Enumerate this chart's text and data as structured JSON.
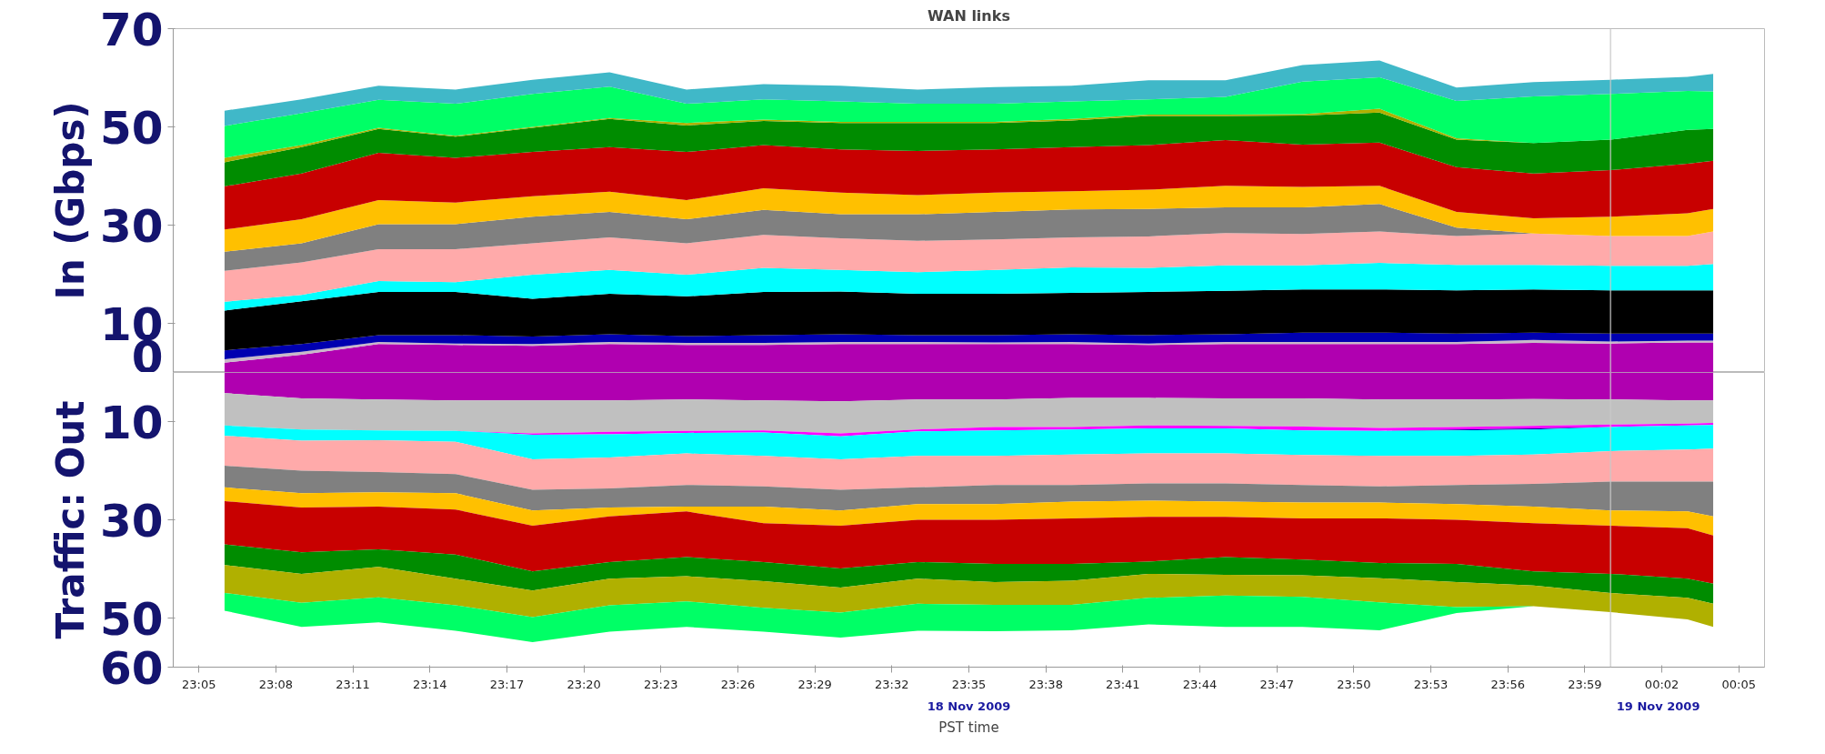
{
  "chart_data": [
    {
      "type": "area",
      "stacked": true,
      "title": "WAN links",
      "ylabel": "In (Gbps)",
      "tick_labels": "y",
      "grid": false,
      "x": [
        "2009-11-18T23:06",
        "2009-11-18T23:09",
        "2009-11-18T23:12",
        "2009-11-18T23:15",
        "2009-11-18T23:18",
        "2009-11-18T23:21",
        "2009-11-18T23:24",
        "2009-11-18T23:27",
        "2009-11-18T23:30",
        "2009-11-18T23:33",
        "2009-11-18T23:36",
        "2009-11-18T23:39",
        "2009-11-18T23:42",
        "2009-11-18T23:45",
        "2009-11-18T23:48",
        "2009-11-18T23:51",
        "2009-11-18T23:54",
        "2009-11-18T23:57",
        "2009-11-19T00:00",
        "2009-11-19T00:03",
        "2009-11-19T00:04"
      ],
      "xlim": [
        "2009-11-18T23:04",
        "2009-11-19T00:06"
      ],
      "ylim": [
        0,
        70
      ],
      "yticks": [
        70,
        50,
        30,
        10,
        0
      ],
      "ref_lines": [
        {
          "axis": "x",
          "value": "2009-11-19T00:00",
          "color": "#c8c8c8"
        }
      ],
      "series": [
        {
          "color": "#b000b0",
          "values": [
            2.0,
            3.6,
            5.8,
            5.6,
            5.4,
            5.8,
            5.6,
            5.6,
            5.8,
            5.8,
            5.8,
            5.8,
            5.6,
            5.8,
            5.8,
            5.8,
            5.8,
            6.0,
            5.9,
            6.1,
            6.1
          ]
        },
        {
          "color": "#c8b8c8",
          "values": [
            0.7,
            0.6,
            0.4,
            0.3,
            0.4,
            0.4,
            0.4,
            0.4,
            0.4,
            0.4,
            0.3,
            0.4,
            0.3,
            0.4,
            0.4,
            0.4,
            0.4,
            0.6,
            0.4,
            0.4,
            0.4
          ]
        },
        {
          "color": "#0000b0",
          "values": [
            1.8,
            1.6,
            1.4,
            1.7,
            1.5,
            1.6,
            1.4,
            1.6,
            1.6,
            1.4,
            1.5,
            1.6,
            1.7,
            1.6,
            1.9,
            1.9,
            1.7,
            1.5,
            1.6,
            1.4,
            1.4
          ]
        },
        {
          "color": "#000000",
          "values": [
            8.1,
            8.7,
            8.8,
            8.8,
            7.7,
            8.2,
            8.1,
            8.8,
            8.7,
            8.4,
            8.4,
            8.4,
            8.8,
            8.8,
            8.8,
            8.8,
            8.8,
            8.8,
            8.8,
            8.8,
            8.8
          ]
        },
        {
          "color": "#00ffff",
          "values": [
            1.8,
            1.3,
            2.2,
            2.0,
            4.9,
            4.9,
            4.4,
            4.9,
            4.4,
            4.4,
            4.9,
            5.2,
            4.9,
            5.2,
            4.9,
            5.4,
            5.2,
            5.0,
            5.0,
            5.0,
            5.4
          ]
        },
        {
          "color": "#ffaaaa",
          "values": [
            6.3,
            6.6,
            6.5,
            6.7,
            6.4,
            6.6,
            6.4,
            6.7,
            6.4,
            6.4,
            6.2,
            6.1,
            6.4,
            6.6,
            6.4,
            6.4,
            5.9,
            6.4,
            6.1,
            6.1,
            6.6
          ]
        },
        {
          "color": "#808080",
          "values": [
            3.9,
            3.9,
            5.1,
            5.1,
            5.4,
            5.2,
            4.9,
            5.1,
            4.9,
            5.4,
            5.6,
            5.7,
            5.6,
            5.2,
            5.4,
            5.6,
            1.7,
            0,
            0,
            0,
            0
          ]
        },
        {
          "color": "#ffc000",
          "values": [
            4.5,
            4.9,
            4.9,
            4.4,
            4.2,
            4.1,
            3.9,
            4.4,
            4.4,
            3.9,
            3.9,
            3.7,
            3.9,
            4.4,
            4.2,
            3.7,
            3.2,
            3.1,
            3.9,
            4.6,
            4.6
          ]
        },
        {
          "color": "#c80000",
          "values": [
            8.8,
            9.3,
            9.6,
            9.1,
            9.0,
            9.1,
            9.8,
            8.8,
            8.8,
            9.0,
            8.8,
            9.0,
            9.1,
            9.3,
            8.6,
            8.8,
            9.1,
            9.1,
            9.5,
            10.1,
            9.8
          ]
        },
        {
          "color": "#008c00",
          "values": [
            4.9,
            5.4,
            4.9,
            4.3,
            4.9,
            5.7,
            5.4,
            4.9,
            5.4,
            5.7,
            5.4,
            5.4,
            5.9,
            4.9,
            5.9,
            6.1,
            5.6,
            6.2,
            6.2,
            6.9,
            6.5
          ]
        },
        {
          "color": "#b0b000",
          "values": [
            0.9,
            0.4,
            0.2,
            0.2,
            0.2,
            0.2,
            0.5,
            0.3,
            0.2,
            0.2,
            0.2,
            0.3,
            0.3,
            0.3,
            0.3,
            0.8,
            0.3,
            0,
            0,
            0,
            0
          ]
        },
        {
          "color": "#00ff66",
          "values": [
            6.5,
            6.5,
            5.7,
            6.5,
            6.7,
            6.4,
            3.9,
            4.1,
            4.2,
            3.7,
            3.7,
            3.6,
            3.1,
            3.6,
            6.6,
            6.4,
            7.6,
            9.5,
            9.3,
            7.9,
            7.6
          ]
        },
        {
          "color": "#40b8c8",
          "values": [
            3.1,
            2.8,
            2.9,
            2.9,
            2.9,
            2.9,
            2.9,
            3.1,
            3.2,
            2.9,
            3.4,
            3.2,
            3.9,
            3.4,
            3.4,
            3.4,
            2.7,
            2.9,
            2.9,
            2.9,
            3.6
          ]
        }
      ]
    },
    {
      "type": "area",
      "stacked": true,
      "xlabel": "PST time",
      "ylabel": "Traffic: Out",
      "grid": false,
      "annotations": [
        "18 Nov 2009"
      ],
      "x": [
        "2009-11-18T23:06",
        "2009-11-18T23:09",
        "2009-11-18T23:12",
        "2009-11-18T23:15",
        "2009-11-18T23:18",
        "2009-11-18T23:21",
        "2009-11-18T23:24",
        "2009-11-18T23:27",
        "2009-11-18T23:30",
        "2009-11-18T23:33",
        "2009-11-18T23:36",
        "2009-11-18T23:39",
        "2009-11-18T23:42",
        "2009-11-18T23:45",
        "2009-11-18T23:48",
        "2009-11-18T23:51",
        "2009-11-18T23:54",
        "2009-11-18T23:57",
        "2009-11-19T00:00",
        "2009-11-19T00:03",
        "2009-11-19T00:04"
      ],
      "xlim": [
        "2009-11-18T23:04",
        "2009-11-19T00:06"
      ],
      "xticks": [
        {
          "value": "2009-11-18T23:05",
          "label": "23:05"
        },
        {
          "value": "2009-11-18T23:08",
          "label": "23:08"
        },
        {
          "value": "2009-11-18T23:11",
          "label": "23:11"
        },
        {
          "value": "2009-11-18T23:14",
          "label": "23:14"
        },
        {
          "value": "2009-11-18T23:17",
          "label": "23:17"
        },
        {
          "value": "2009-11-18T23:20",
          "label": "23:20"
        },
        {
          "value": "2009-11-18T23:23",
          "label": "23:23"
        },
        {
          "value": "2009-11-18T23:26",
          "label": "23:26"
        },
        {
          "value": "2009-11-18T23:29",
          "label": "23:29"
        },
        {
          "value": "2009-11-18T23:32",
          "label": "23:32"
        },
        {
          "value": "2009-11-18T23:35",
          "label": "23:35"
        },
        {
          "value": "2009-11-18T23:38",
          "label": "23:38"
        },
        {
          "value": "2009-11-18T23:41",
          "label": "23:41"
        },
        {
          "value": "2009-11-18T23:44",
          "label": "23:44"
        },
        {
          "value": "2009-11-18T23:47",
          "label": "23:47"
        },
        {
          "value": "2009-11-18T23:50",
          "label": "23:50"
        },
        {
          "value": "2009-11-18T23:53",
          "label": "23:53"
        },
        {
          "value": "2009-11-18T23:56",
          "label": "23:56"
        },
        {
          "value": "2009-11-18T23:59",
          "label": "23:59"
        },
        {
          "value": "2009-11-19T00:02",
          "label": "00:02"
        },
        {
          "value": "2009-11-19T00:05",
          "label": "00:05"
        }
      ],
      "ylim": [
        -60,
        0
      ],
      "yticks": [
        {
          "value": -10,
          "label": "10"
        },
        {
          "value": -30,
          "label": "30"
        },
        {
          "value": -50,
          "label": "50"
        },
        {
          "value": -60,
          "label": "60"
        }
      ],
      "ref_lines": [
        {
          "axis": "x",
          "value": "2009-11-19T00:00",
          "label": "19 Nov 2009",
          "color": "#c8c8c8"
        }
      ],
      "series": [
        {
          "color": "#b000b0",
          "values": [
            -4.2,
            -5.3,
            -5.5,
            -5.7,
            -5.7,
            -5.7,
            -5.5,
            -5.7,
            -5.9,
            -5.5,
            -5.5,
            -5.2,
            -5.2,
            -5.3,
            -5.3,
            -5.5,
            -5.5,
            -5.4,
            -5.5,
            -5.7,
            -5.7
          ]
        },
        {
          "color": "#c0c0c0",
          "values": [
            -6.6,
            -6.3,
            -6.3,
            -6.2,
            -6.7,
            -6.4,
            -6.4,
            -6.1,
            -6.5,
            -6.1,
            -5.6,
            -5.9,
            -5.6,
            -5.6,
            -5.7,
            -5.8,
            -5.6,
            -5.5,
            -5.1,
            -4.7,
            -4.6
          ]
        },
        {
          "color": "#ff00ff",
          "values": [
            0,
            0,
            0,
            0,
            -0.3,
            -0.5,
            -0.4,
            -0.4,
            -0.6,
            -0.4,
            -0.7,
            -0.5,
            -0.6,
            -0.5,
            -0.8,
            -0.6,
            -0.5,
            -0.5,
            -0.5,
            -0.4,
            -0.4
          ]
        },
        {
          "color": "#0000a0",
          "values": [
            0,
            0,
            0,
            0,
            0,
            0,
            0,
            0,
            0,
            0,
            0,
            0,
            0,
            0,
            0,
            0,
            -0.2,
            -0.2,
            0,
            0,
            0
          ]
        },
        {
          "color": "#00ffff",
          "values": [
            -2.1,
            -2.3,
            -2.0,
            -2.2,
            -5.0,
            -4.7,
            -4.2,
            -4.8,
            -4.7,
            -5.0,
            -5.2,
            -5.1,
            -5.1,
            -5.1,
            -5.0,
            -5.1,
            -5.2,
            -5.1,
            -4.9,
            -4.9,
            -4.8
          ]
        },
        {
          "color": "#ffaaaa",
          "values": [
            -6.1,
            -6.1,
            -6.5,
            -6.6,
            -6.2,
            -6.3,
            -6.4,
            -6.2,
            -6.2,
            -6.4,
            -5.9,
            -6.2,
            -6.1,
            -6.1,
            -6.1,
            -6.2,
            -5.9,
            -6.0,
            -6.2,
            -6.5,
            -6.7
          ]
        },
        {
          "color": "#808080",
          "values": [
            -4.4,
            -4.6,
            -4.1,
            -3.9,
            -4.2,
            -3.9,
            -4.4,
            -4.1,
            -4.2,
            -3.4,
            -3.9,
            -3.4,
            -3.5,
            -3.7,
            -3.6,
            -3.3,
            -3.9,
            -4.6,
            -5.9,
            -6.1,
            -7.1
          ]
        },
        {
          "color": "#ffc000",
          "values": [
            -2.8,
            -2.9,
            -2.9,
            -3.3,
            -3.1,
            -1.8,
            -1.0,
            -3.4,
            -3.1,
            -3.2,
            -3.2,
            -3.4,
            -3.3,
            -3.1,
            -3.2,
            -3.2,
            -3.2,
            -3.4,
            -3.1,
            -3.4,
            -3.9
          ]
        },
        {
          "color": "#c80000",
          "values": [
            -8.8,
            -9.1,
            -8.7,
            -9.2,
            -9.3,
            -9.3,
            -9.3,
            -7.9,
            -8.7,
            -8.6,
            -9.0,
            -9.3,
            -9.1,
            -8.2,
            -8.4,
            -9.1,
            -9.0,
            -9.8,
            -9.8,
            -10.3,
            -9.8
          ]
        },
        {
          "color": "#008c00",
          "values": [
            -4.2,
            -4.4,
            -3.6,
            -4.9,
            -3.9,
            -3.4,
            -3.9,
            -3.9,
            -3.9,
            -3.4,
            -3.7,
            -3.4,
            -2.5,
            -3.6,
            -3.2,
            -3.1,
            -3.7,
            -2.9,
            -3.9,
            -3.9,
            -4.1
          ]
        },
        {
          "color": "#b0b000",
          "values": [
            -5.7,
            -5.9,
            -6.2,
            -5.4,
            -5.4,
            -5.4,
            -5.1,
            -5.4,
            -5.1,
            -5.1,
            -4.6,
            -4.9,
            -4.9,
            -4.2,
            -4.4,
            -4.9,
            -5.1,
            -4.2,
            -3.9,
            -4.4,
            -4.7
          ]
        },
        {
          "color": "#00ff66",
          "values": [
            -3.6,
            -4.9,
            -5.1,
            -5.2,
            -5.1,
            -5.4,
            -5.2,
            -4.9,
            -5.1,
            -5.5,
            -5.4,
            -5.2,
            -5.4,
            -6.4,
            -6.1,
            -5.7,
            -1.2,
            0,
            0,
            0,
            0
          ]
        }
      ]
    }
  ]
}
